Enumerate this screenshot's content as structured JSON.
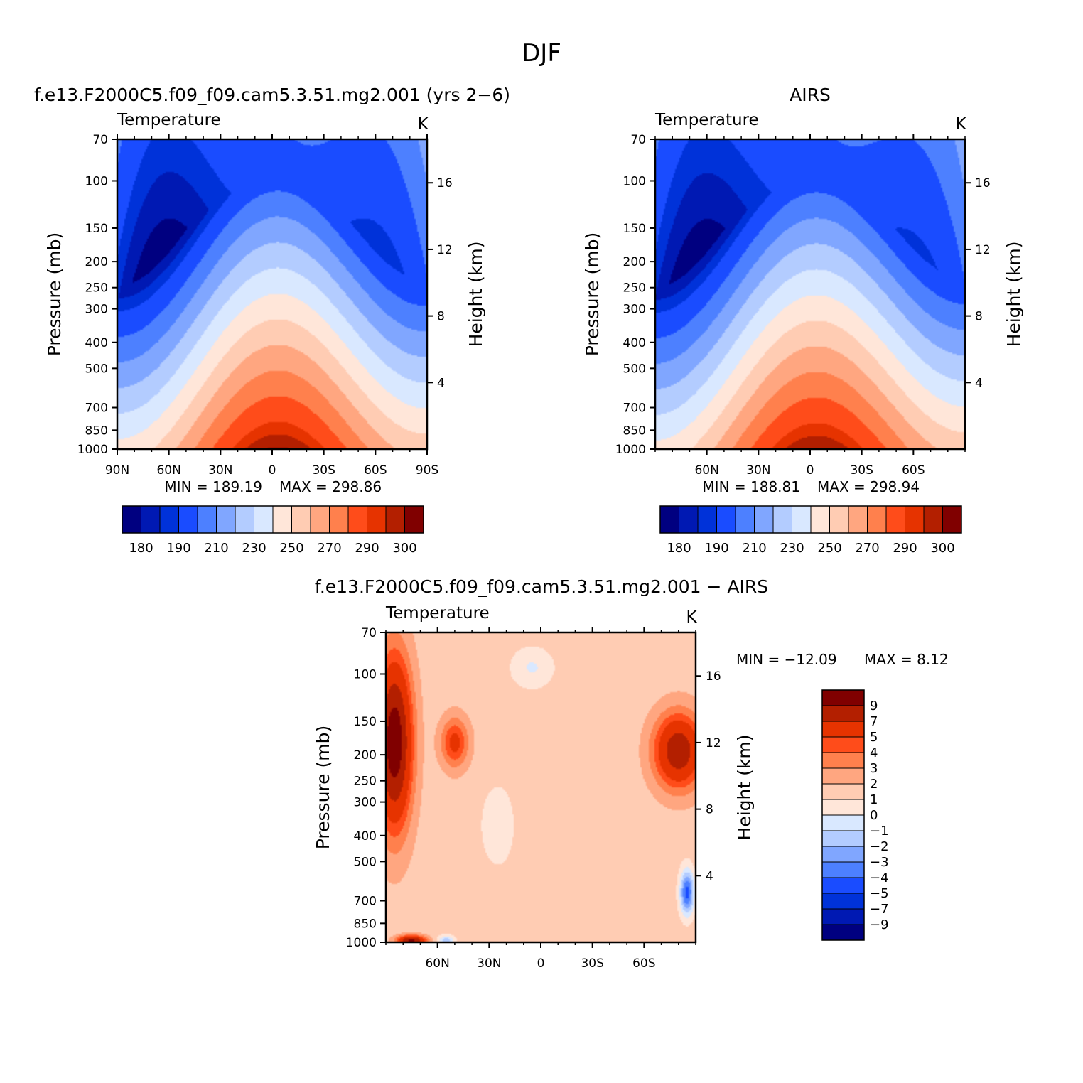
{
  "figure_title": "DJF",
  "chart_data": [
    {
      "type": "contour",
      "panel_title": "f.e13.F2000C5.f09_f09.cam5.3.51.mg2.001 (yrs 2−6)",
      "variable": "Temperature",
      "units": "K",
      "ylabel": "Pressure (mb)",
      "y2label": "Height (km)",
      "y_ticks": [
        70,
        100,
        150,
        200,
        250,
        300,
        400,
        500,
        700,
        850,
        1000
      ],
      "y2_ticks": [
        4,
        8,
        12,
        16
      ],
      "x_ticks": [
        "90N",
        "60N",
        "30N",
        "0",
        "30S",
        "60S",
        "90S"
      ],
      "x_tick_values": [
        90,
        60,
        30,
        0,
        -30,
        -60,
        -90
      ],
      "xlim": [
        90,
        -90
      ],
      "ylim": [
        70,
        1000
      ],
      "y_scale": "log",
      "min_text": "MIN = 189.19",
      "max_text": "MAX = 298.86",
      "min": 189.19,
      "max": 298.86,
      "colorbar_labels": [
        "180",
        "190",
        "210",
        "230",
        "250",
        "270",
        "290",
        "300"
      ]
    },
    {
      "type": "contour",
      "panel_title": "AIRS",
      "variable": "Temperature",
      "units": "K",
      "ylabel": "Pressure (mb)",
      "y2label": "Height (km)",
      "y_ticks": [
        70,
        100,
        150,
        200,
        250,
        300,
        400,
        500,
        700,
        850,
        1000
      ],
      "y2_ticks": [
        4,
        8,
        12,
        16
      ],
      "x_ticks": [
        "60N",
        "30N",
        "0",
        "30S",
        "60S"
      ],
      "x_tick_values": [
        60,
        30,
        0,
        -30,
        -60
      ],
      "xlim": [
        90,
        -90
      ],
      "ylim": [
        70,
        1000
      ],
      "y_scale": "log",
      "min_text": "MIN = 188.81",
      "max_text": "MAX = 298.94",
      "min": 188.81,
      "max": 298.94,
      "colorbar_labels": [
        "180",
        "190",
        "210",
        "230",
        "250",
        "270",
        "290",
        "300"
      ]
    },
    {
      "type": "contour",
      "panel_title": "f.e13.F2000C5.f09_f09.cam5.3.51.mg2.001 − AIRS",
      "variable": "Temperature",
      "units": "K",
      "ylabel": "Pressure (mb)",
      "y2label": "Height (km)",
      "y_ticks": [
        70,
        100,
        150,
        200,
        250,
        300,
        400,
        500,
        700,
        850,
        1000
      ],
      "y2_ticks": [
        4,
        8,
        12,
        16
      ],
      "x_ticks": [
        "60N",
        "30N",
        "0",
        "30S",
        "60S"
      ],
      "x_tick_values": [
        60,
        30,
        0,
        -30,
        -60
      ],
      "xlim": [
        90,
        -90
      ],
      "ylim": [
        70,
        1000
      ],
      "y_scale": "log",
      "min_text": "MIN = −12.09",
      "max_text": "MAX = 8.12",
      "min": -12.09,
      "max": 8.12,
      "colorbar_labels": [
        "9",
        "7",
        "5",
        "4",
        "3",
        "2",
        "1",
        "0",
        "−1",
        "−2",
        "−3",
        "−4",
        "−5",
        "−7",
        "−9"
      ]
    }
  ],
  "colors": {
    "abs_palette": [
      "#000080",
      "#0019b3",
      "#0032d9",
      "#1a4cff",
      "#4d80ff",
      "#80a6ff",
      "#b3ccff",
      "#d9e8ff",
      "#ffe6d9",
      "#ffccb3",
      "#ffa680",
      "#ff804d",
      "#ff4c1a",
      "#e63300",
      "#b31f00",
      "#800000"
    ],
    "diff_palette": [
      "#800000",
      "#b31f00",
      "#e63300",
      "#ff4c1a",
      "#ff804d",
      "#ffa680",
      "#ffccb3",
      "#ffe6d9",
      "#d9e8ff",
      "#b3ccff",
      "#80a6ff",
      "#4d80ff",
      "#1a4cff",
      "#0032d9",
      "#0019b3",
      "#000080"
    ]
  }
}
